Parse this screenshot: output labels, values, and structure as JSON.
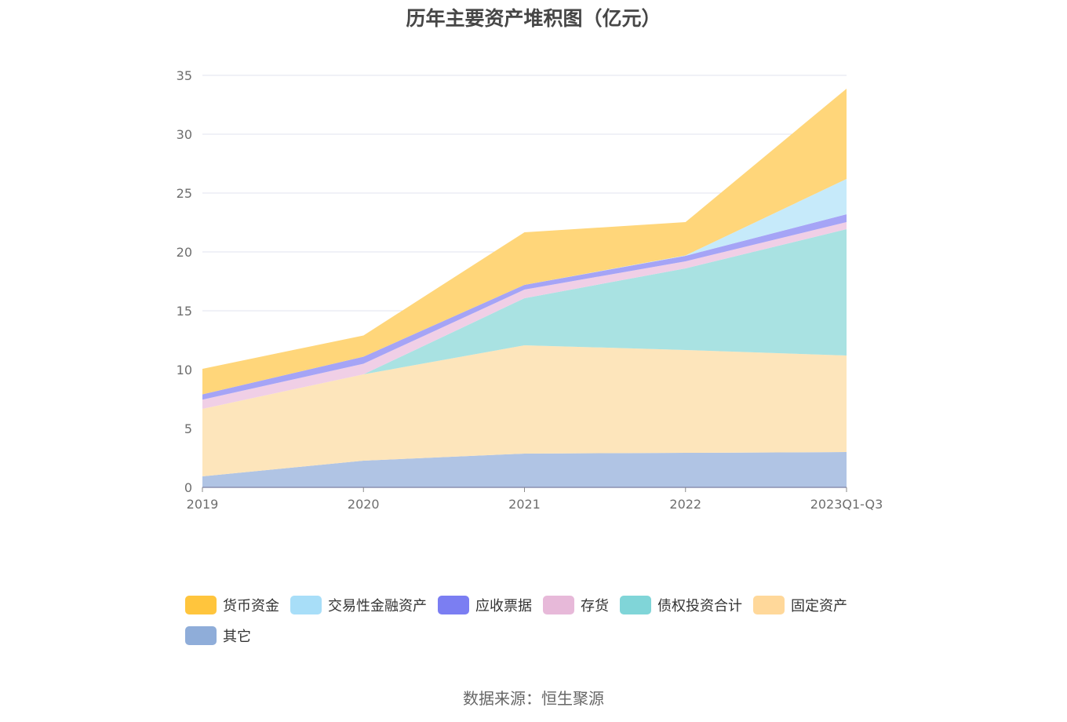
{
  "chart_data": {
    "type": "area",
    "stacked": true,
    "title": "历年主要资产堆积图（亿元）",
    "xlabel": "",
    "ylabel": "",
    "categories": [
      "2019",
      "2020",
      "2021",
      "2022",
      "2023Q1-Q3"
    ],
    "ylim": [
      0,
      35
    ],
    "yticks": [
      "0",
      "5",
      "10",
      "15",
      "20",
      "25",
      "30",
      "35"
    ],
    "grid": true,
    "legend_position": "bottom",
    "series": [
      {
        "name": "其它",
        "color": "#8fadd9",
        "fill": "#b0c4e4",
        "values": [
          0.93,
          2.27,
          2.87,
          2.93,
          3.0
        ]
      },
      {
        "name": "固定资产",
        "color": "#ffd89a",
        "fill": "#fde5bb",
        "values": [
          5.74,
          7.33,
          9.2,
          8.74,
          8.2
        ]
      },
      {
        "name": "债权投资合计",
        "color": "#80d5d8",
        "fill": "#a9e2e2",
        "values": [
          0.0,
          0.0,
          4.0,
          6.93,
          10.73
        ]
      },
      {
        "name": "存货",
        "color": "#e7b9d9",
        "fill": "#f0cfe6",
        "values": [
          0.78,
          0.9,
          0.73,
          0.6,
          0.6
        ]
      },
      {
        "name": "应收票据",
        "color": "#7b7ef2",
        "fill": "#a5a4f6",
        "values": [
          0.45,
          0.6,
          0.4,
          0.47,
          0.67
        ]
      },
      {
        "name": "交易性金融资产",
        "color": "#a8def8",
        "fill": "#c6eafa",
        "values": [
          0.0,
          0.0,
          0.0,
          0.03,
          3.0
        ]
      },
      {
        "name": "货币资金",
        "color": "#ffc53d",
        "fill": "#ffd67a",
        "values": [
          2.17,
          1.8,
          4.47,
          2.83,
          7.67
        ]
      }
    ]
  },
  "legend": {
    "items": [
      {
        "label": "货币资金",
        "color": "#ffc53d"
      },
      {
        "label": "交易性金融资产",
        "color": "#a8def8"
      },
      {
        "label": "应收票据",
        "color": "#7b7ef2"
      },
      {
        "label": "存货",
        "color": "#e7b9d9"
      },
      {
        "label": "债权投资合计",
        "color": "#80d5d8"
      },
      {
        "label": "固定资产",
        "color": "#ffd89a"
      },
      {
        "label": "其它",
        "color": "#8fadd9"
      }
    ]
  },
  "source": "数据来源：恒生聚源"
}
